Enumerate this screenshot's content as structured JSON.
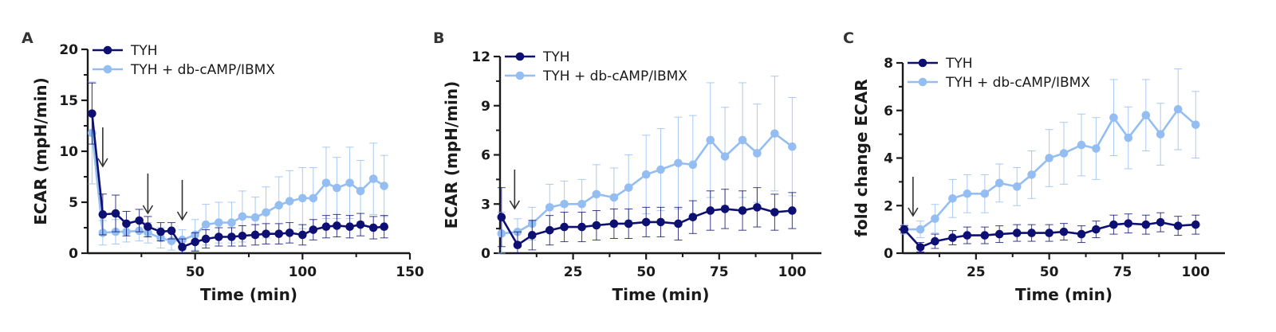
{
  "colors": {
    "tyh": "#0d0f73",
    "tyh_camp": "#94bef2",
    "axis": "#1a1a1a",
    "arrow": "#333333"
  },
  "chart_data": [
    {
      "panel": "A",
      "type": "line",
      "xlabel": "Time (min)",
      "ylabel": "ECAR (mpH/min)",
      "xlim": [
        0,
        150
      ],
      "ylim": [
        0,
        20
      ],
      "xticks": [
        50,
        100,
        150
      ],
      "yticks": [
        0,
        5,
        10,
        15,
        20
      ],
      "legend": [
        "TYH",
        "TYH + db-cAMP/IBMX"
      ],
      "arrows_at_x": [
        7,
        28,
        44
      ],
      "series": [
        {
          "name": "TYH",
          "x": [
            2,
            7,
            13,
            18,
            24,
            28,
            34,
            39,
            44,
            50,
            55,
            61,
            67,
            72,
            78,
            83,
            89,
            94,
            100,
            105,
            111,
            116,
            122,
            127,
            133,
            138
          ],
          "values": [
            13.7,
            3.8,
            3.9,
            2.9,
            3.2,
            2.6,
            2.1,
            2.2,
            0.6,
            1.1,
            1.4,
            1.6,
            1.6,
            1.7,
            1.8,
            1.9,
            1.9,
            2.0,
            1.8,
            2.3,
            2.6,
            2.7,
            2.6,
            2.8,
            2.5,
            2.6
          ],
          "errors": [
            3.0,
            2.0,
            1.8,
            1.2,
            1.1,
            1.0,
            0.9,
            0.8,
            0.8,
            0.9,
            0.9,
            0.9,
            0.9,
            1.0,
            1.0,
            1.0,
            1.0,
            1.0,
            1.0,
            1.0,
            1.1,
            1.1,
            1.1,
            1.1,
            1.1,
            1.1
          ]
        },
        {
          "name": "TYH + db-cAMP/IBMX",
          "x": [
            2,
            7,
            13,
            18,
            24,
            28,
            34,
            39,
            44,
            50,
            55,
            61,
            67,
            72,
            78,
            83,
            89,
            94,
            100,
            105,
            111,
            116,
            122,
            127,
            133,
            138
          ],
          "values": [
            11.8,
            2.0,
            2.1,
            2.1,
            2.2,
            2.0,
            1.5,
            1.2,
            1.3,
            1.8,
            2.8,
            3.0,
            3.0,
            3.6,
            3.5,
            4.0,
            4.7,
            5.1,
            5.4,
            5.4,
            6.9,
            6.4,
            6.9,
            6.1,
            7.3,
            6.6
          ],
          "errors": [
            5.0,
            1.2,
            1.2,
            1.0,
            1.0,
            1.0,
            1.0,
            0.9,
            1.0,
            1.5,
            2.0,
            2.0,
            2.0,
            2.5,
            2.0,
            2.5,
            2.8,
            3.0,
            3.0,
            3.0,
            3.5,
            3.0,
            3.5,
            3.0,
            3.5,
            3.0
          ]
        }
      ]
    },
    {
      "panel": "B",
      "type": "line",
      "xlabel": "Time (min)",
      "ylabel": "ECAR (mpH/min)",
      "xlim": [
        0,
        110
      ],
      "ylim": [
        0,
        12
      ],
      "xticks": [
        25,
        50,
        75,
        100
      ],
      "yticks": [
        0,
        3,
        6,
        9,
        12
      ],
      "legend": [
        "TYH",
        "TYH + db-cAMP/IBMX"
      ],
      "arrows_at_x": [
        5
      ],
      "series": [
        {
          "name": "TYH",
          "x": [
            0.5,
            6,
            11,
            17,
            22,
            28,
            33,
            39,
            44,
            50,
            55,
            61,
            66,
            72,
            77,
            83,
            88,
            94,
            100
          ],
          "values": [
            2.2,
            0.5,
            1.1,
            1.4,
            1.6,
            1.6,
            1.7,
            1.8,
            1.8,
            1.9,
            1.9,
            1.8,
            2.2,
            2.6,
            2.7,
            2.6,
            2.8,
            2.5,
            2.6
          ],
          "errors": [
            1.8,
            0.8,
            0.9,
            0.9,
            0.9,
            0.9,
            0.9,
            0.9,
            0.9,
            0.9,
            0.9,
            1.0,
            1.0,
            1.2,
            1.2,
            1.2,
            1.2,
            1.1,
            1.1
          ]
        },
        {
          "name": "TYH + db-cAMP/IBMX",
          "x": [
            0.5,
            6,
            11,
            17,
            22,
            28,
            33,
            39,
            44,
            50,
            55,
            61,
            66,
            72,
            77,
            83,
            88,
            94,
            100
          ],
          "values": [
            1.2,
            1.3,
            1.8,
            2.8,
            3.0,
            3.0,
            3.6,
            3.4,
            4.0,
            4.8,
            5.1,
            5.5,
            5.4,
            6.9,
            5.9,
            6.9,
            6.1,
            7.3,
            6.5
          ],
          "errors": [
            1.3,
            0.8,
            1.0,
            1.4,
            1.4,
            1.5,
            1.8,
            1.8,
            2.0,
            2.4,
            2.5,
            2.8,
            3.0,
            3.5,
            3.0,
            3.5,
            3.0,
            3.5,
            3.0
          ]
        }
      ]
    },
    {
      "panel": "C",
      "type": "line",
      "xlabel": "Time (min)",
      "ylabel": "fold change ECAR",
      "xlim": [
        0,
        110
      ],
      "ylim": [
        0,
        8
      ],
      "xticks": [
        25,
        50,
        75,
        100
      ],
      "yticks": [
        0,
        2,
        4,
        6,
        8
      ],
      "legend": [
        "TYH",
        "TYH + db-cAMP/IBMX"
      ],
      "arrows_at_x": [
        3.5
      ],
      "series": [
        {
          "name": "TYH",
          "x": [
            0.5,
            6,
            11,
            17,
            22,
            28,
            33,
            39,
            44,
            50,
            55,
            61,
            66,
            72,
            77,
            83,
            88,
            94,
            100
          ],
          "values": [
            1.0,
            0.25,
            0.5,
            0.65,
            0.75,
            0.75,
            0.8,
            0.85,
            0.85,
            0.85,
            0.9,
            0.8,
            1.0,
            1.2,
            1.25,
            1.2,
            1.3,
            1.15,
            1.2
          ],
          "errors": [
            0.15,
            0.2,
            0.3,
            0.3,
            0.35,
            0.35,
            0.35,
            0.35,
            0.35,
            0.35,
            0.35,
            0.35,
            0.35,
            0.4,
            0.4,
            0.4,
            0.4,
            0.4,
            0.4
          ]
        },
        {
          "name": "TYH + db-cAMP/IBMX",
          "x": [
            0.5,
            6,
            11,
            17,
            22,
            28,
            33,
            39,
            44,
            50,
            55,
            61,
            66,
            72,
            77,
            83,
            88,
            94,
            100
          ],
          "values": [
            1.0,
            1.0,
            1.45,
            2.3,
            2.5,
            2.5,
            2.95,
            2.8,
            3.3,
            4.0,
            4.2,
            4.55,
            4.4,
            5.7,
            4.85,
            5.8,
            5.0,
            6.05,
            5.4
          ],
          "errors": [
            0.2,
            0.35,
            0.6,
            0.8,
            0.8,
            0.8,
            0.8,
            0.8,
            1.0,
            1.2,
            1.3,
            1.3,
            1.3,
            1.6,
            1.3,
            1.5,
            1.3,
            1.7,
            1.4
          ]
        }
      ]
    }
  ]
}
